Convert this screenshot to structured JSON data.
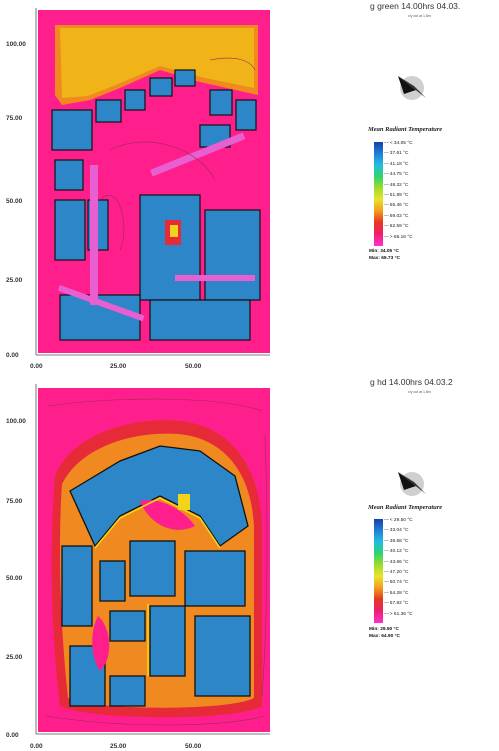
{
  "panels": [
    {
      "title": "g green 14.00hrs 04.03.",
      "subtitle": "x/y cut at 1.8m",
      "legend": {
        "title": "Mean Radiant Temperature",
        "labels": [
          "< 34.05 °C",
          "37.61 °C",
          "41.18 °C",
          "44.75 °C",
          "48.32 °C",
          "51.89 °C",
          "55.46 °C",
          "59.02 °C",
          "62.59 °C",
          "> 66.16 °C"
        ],
        "min": "Min: 34.05 °C",
        "max": "Max: 69.73 °C"
      },
      "axes": {
        "y_ticks": [
          "100.00",
          "75.00",
          "50.00",
          "25.00",
          "0.00"
        ],
        "x_ticks": [
          "0.00",
          "25.00",
          "50.00"
        ]
      },
      "north_icon": "north-arrow-icon"
    },
    {
      "title": "g hd 14.00hrs 04.03.2",
      "subtitle": "x/y cut at 1.8m",
      "legend": {
        "title": "Mean Radiant Temperature",
        "labels": [
          "< 29.50 °C",
          "33.04 °C",
          "36.58 °C",
          "40.12 °C",
          "43.66 °C",
          "47.20 °C",
          "50.74 °C",
          "54.28 °C",
          "57.82 °C",
          "> 61.36 °C"
        ],
        "min": "Min: 29.50 °C",
        "max": "Max: 64.90 °C"
      },
      "axes": {
        "y_ticks": [
          "100.00",
          "75.00",
          "50.00",
          "25.00",
          "0.00"
        ],
        "x_ticks": [
          "0.00",
          "25.00",
          "50.00"
        ]
      },
      "north_icon": "north-arrow-icon"
    }
  ],
  "colors": {
    "background_hot": "#ff1f8c",
    "border_red": "#e62a38",
    "orange": "#f08a20",
    "yellow": "#f2d418",
    "building_blue": "#2d86c7",
    "path_magenta": "#e85fd2",
    "open_area_yellow": "#f0b419"
  }
}
